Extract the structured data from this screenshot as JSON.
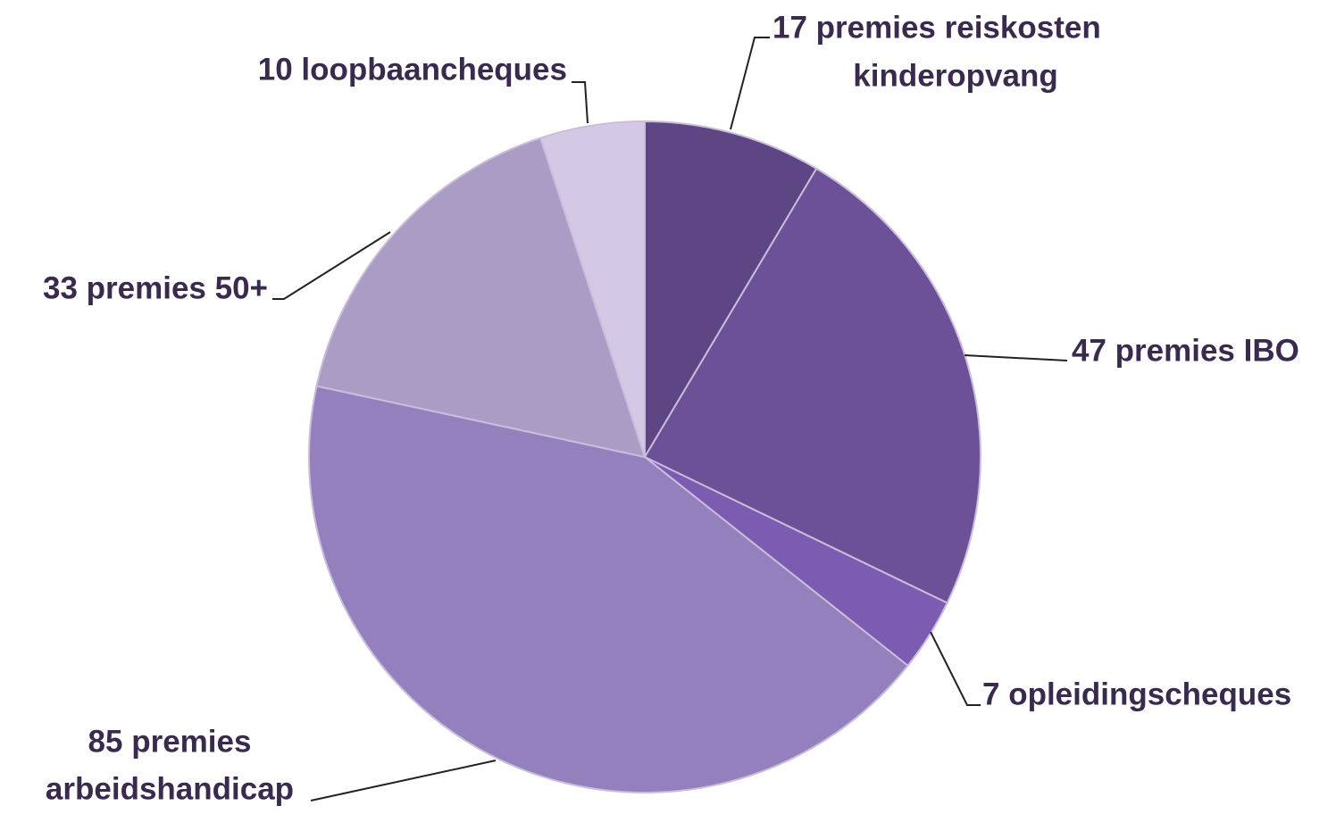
{
  "chart_data": {
    "type": "pie",
    "categories": [
      "premies reiskosten kinderopvang",
      "premies IBO",
      "opleidingscheques",
      "premies arbeidshandicap",
      "premies 50+",
      "loopbaancheques"
    ],
    "values": [
      17,
      47,
      7,
      85,
      33,
      10
    ],
    "value_labels": [
      [
        "17 premies reiskosten",
        "kinderopvang"
      ],
      [
        "47 premies IBO"
      ],
      [
        "7 opleidingscheques"
      ],
      [
        "85 premies",
        "arbeidshandicap"
      ],
      [
        "33 premies 50+"
      ],
      [
        "10 loopbaancheques"
      ]
    ],
    "colors": [
      "#5e4584",
      "#6c5098",
      "#7b5cb0",
      "#9580be",
      "#ab9cc6",
      "#d4c9e4"
    ]
  }
}
